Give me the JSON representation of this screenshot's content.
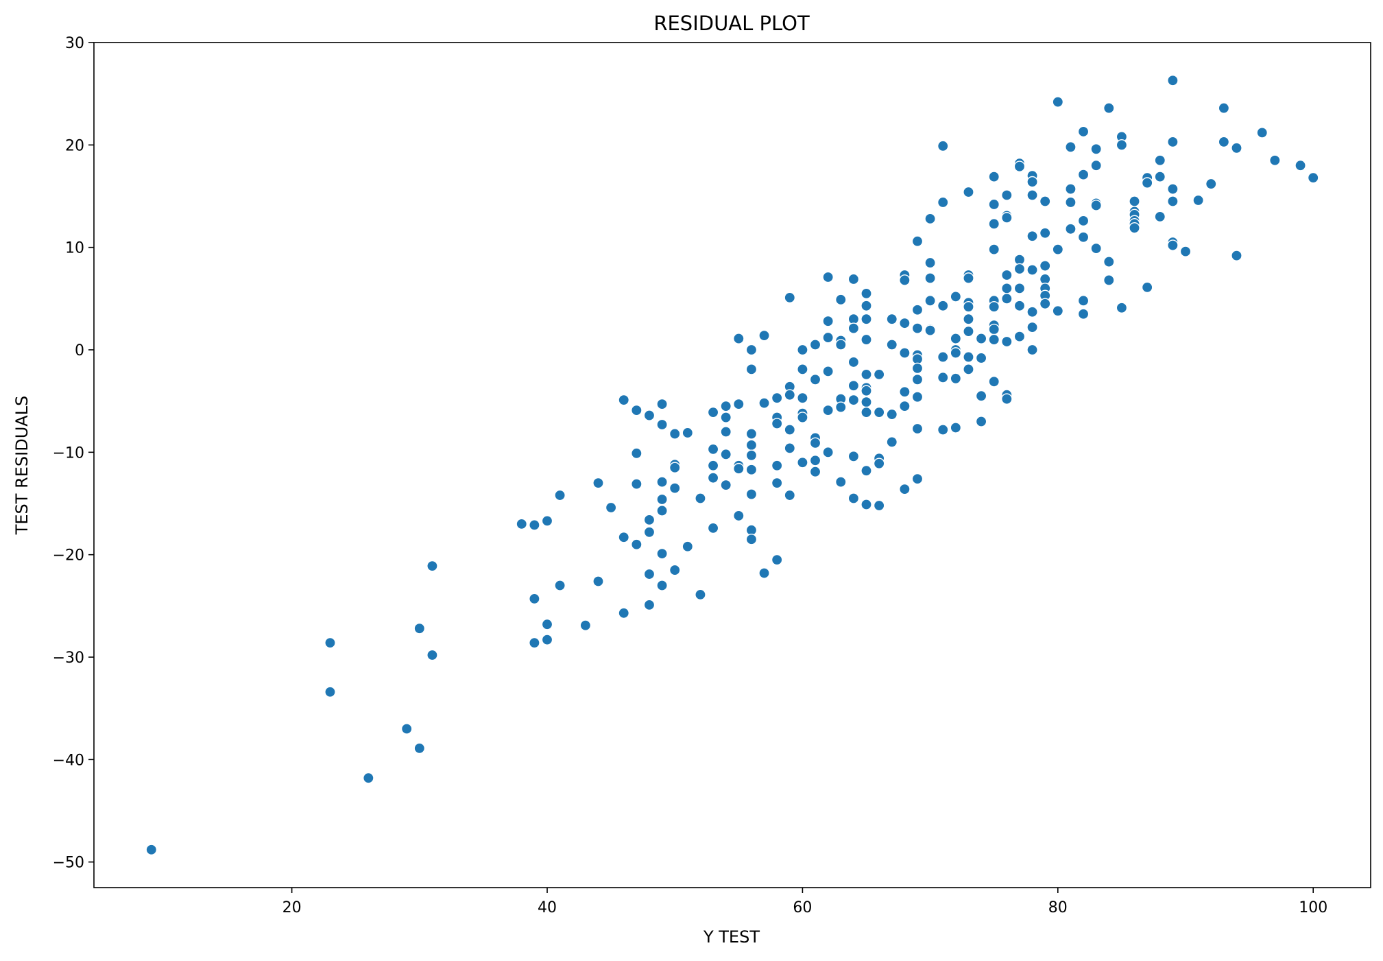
{
  "chart_data": {
    "type": "scatter",
    "title": "RESIDUAL PLOT",
    "xlabel": "Y TEST",
    "ylabel": "TEST RESIDUALS",
    "xlim": [
      4.5,
      104.5
    ],
    "ylim": [
      -52.5,
      30
    ],
    "xticks": [
      "20",
      "40",
      "60",
      "80",
      "100"
    ],
    "yticks": [
      "30",
      "20",
      "10",
      "0",
      "−10",
      "−20",
      "−30",
      "−40",
      "−50"
    ],
    "grid": false,
    "marker_color": "#1f77b4",
    "marker_edge": "#ffffff",
    "points": [
      [
        9,
        -48.8
      ],
      [
        23,
        -28.6
      ],
      [
        23,
        -33.4
      ],
      [
        26,
        -41.8
      ],
      [
        29,
        -37
      ],
      [
        30,
        -27.2
      ],
      [
        30,
        -38.9
      ],
      [
        31,
        -21.1
      ],
      [
        31,
        -29.8
      ],
      [
        38,
        -17
      ],
      [
        39,
        -17.1
      ],
      [
        39,
        -24.3
      ],
      [
        39,
        -28.6
      ],
      [
        40,
        -16.7
      ],
      [
        40,
        -26.8
      ],
      [
        40,
        -28.3
      ],
      [
        41,
        -14.2
      ],
      [
        41,
        -23
      ],
      [
        43,
        -26.9
      ],
      [
        44,
        -13
      ],
      [
        44,
        -22.6
      ],
      [
        45,
        -15.4
      ],
      [
        46,
        -4.9
      ],
      [
        46,
        -18.3
      ],
      [
        46,
        -25.7
      ],
      [
        47,
        -5.9
      ],
      [
        47,
        -10.1
      ],
      [
        47,
        -13.1
      ],
      [
        47,
        -19
      ],
      [
        48,
        -6.4
      ],
      [
        48,
        -16.6
      ],
      [
        48,
        -17.8
      ],
      [
        48,
        -21.9
      ],
      [
        48,
        -24.9
      ],
      [
        49,
        -5.3
      ],
      [
        49,
        -7.3
      ],
      [
        49,
        -12.9
      ],
      [
        49,
        -14.6
      ],
      [
        49,
        -15.7
      ],
      [
        49,
        -19.9
      ],
      [
        49,
        -23
      ],
      [
        50,
        -8.2
      ],
      [
        50,
        -11.2
      ],
      [
        50,
        -11.5
      ],
      [
        50,
        -13.5
      ],
      [
        50,
        -21.5
      ],
      [
        51,
        -8.1
      ],
      [
        51,
        -19.2
      ],
      [
        52,
        -14.5
      ],
      [
        52,
        -23.9
      ],
      [
        53,
        -6.1
      ],
      [
        53,
        -9.7
      ],
      [
        53,
        -11.3
      ],
      [
        53,
        -12.5
      ],
      [
        53,
        -17.4
      ],
      [
        54,
        -5.5
      ],
      [
        54,
        -6.6
      ],
      [
        54,
        -8
      ],
      [
        54,
        -10.2
      ],
      [
        54,
        -13.2
      ],
      [
        55,
        1.1
      ],
      [
        55,
        -5.3
      ],
      [
        55,
        -11.3
      ],
      [
        55,
        -11.6
      ],
      [
        55,
        -16.2
      ],
      [
        56,
        0
      ],
      [
        56,
        -1.9
      ],
      [
        56,
        -8.2
      ],
      [
        56,
        -9.3
      ],
      [
        56,
        -10.3
      ],
      [
        56,
        -11.7
      ],
      [
        56,
        -14.1
      ],
      [
        56,
        -17.6
      ],
      [
        56,
        -18.5
      ],
      [
        57,
        1.4
      ],
      [
        57,
        -5.2
      ],
      [
        57,
        -21.8
      ],
      [
        58,
        -4.7
      ],
      [
        58,
        -6.6
      ],
      [
        58,
        -7.2
      ],
      [
        58,
        -11.3
      ],
      [
        58,
        -13
      ],
      [
        58,
        -20.5
      ],
      [
        59,
        5.1
      ],
      [
        59,
        -3.6
      ],
      [
        59,
        -4.4
      ],
      [
        59,
        -7.8
      ],
      [
        59,
        -9.6
      ],
      [
        59,
        -14.2
      ],
      [
        60,
        0
      ],
      [
        60,
        -1.9
      ],
      [
        60,
        -4.7
      ],
      [
        60,
        -6.2
      ],
      [
        60,
        -6.6
      ],
      [
        60,
        -11
      ],
      [
        61,
        0.5
      ],
      [
        61,
        -2.9
      ],
      [
        61,
        -8.6
      ],
      [
        61,
        -9.1
      ],
      [
        61,
        -10.8
      ],
      [
        61,
        -11.9
      ],
      [
        62,
        7.1
      ],
      [
        62,
        2.8
      ],
      [
        62,
        1.2
      ],
      [
        62,
        -2.1
      ],
      [
        62,
        -5.9
      ],
      [
        62,
        -10
      ],
      [
        63,
        4.9
      ],
      [
        63,
        0.9
      ],
      [
        63,
        0.5
      ],
      [
        63,
        -4.8
      ],
      [
        63,
        -5.6
      ],
      [
        63,
        -12.9
      ],
      [
        64,
        6.9
      ],
      [
        64,
        3
      ],
      [
        64,
        2.1
      ],
      [
        64,
        -1.2
      ],
      [
        64,
        -3.5
      ],
      [
        64,
        -4.9
      ],
      [
        64,
        -10.4
      ],
      [
        64,
        -14.5
      ],
      [
        65,
        5.5
      ],
      [
        65,
        4.3
      ],
      [
        65,
        3
      ],
      [
        65,
        1
      ],
      [
        65,
        -2.4
      ],
      [
        65,
        -3.7
      ],
      [
        65,
        -4
      ],
      [
        65,
        -5.1
      ],
      [
        65,
        -6.1
      ],
      [
        65,
        -11.8
      ],
      [
        65,
        -15.1
      ],
      [
        66,
        -2.4
      ],
      [
        66,
        -6.1
      ],
      [
        66,
        -10.6
      ],
      [
        66,
        -11.1
      ],
      [
        66,
        -15.2
      ],
      [
        67,
        3
      ],
      [
        67,
        0.5
      ],
      [
        67,
        -6.3
      ],
      [
        67,
        -9
      ],
      [
        68,
        7.3
      ],
      [
        68,
        6.8
      ],
      [
        68,
        2.6
      ],
      [
        68,
        -0.3
      ],
      [
        68,
        -4.1
      ],
      [
        68,
        -5.5
      ],
      [
        68,
        -13.6
      ],
      [
        69,
        10.6
      ],
      [
        69,
        3.9
      ],
      [
        69,
        2.1
      ],
      [
        69,
        -0.5
      ],
      [
        69,
        -0.9
      ],
      [
        69,
        -1.8
      ],
      [
        69,
        -2.9
      ],
      [
        69,
        -4.6
      ],
      [
        69,
        -7.7
      ],
      [
        69,
        -12.6
      ],
      [
        70,
        12.8
      ],
      [
        70,
        8.5
      ],
      [
        70,
        7
      ],
      [
        70,
        4.8
      ],
      [
        70,
        2
      ],
      [
        70,
        1.9
      ],
      [
        71,
        19.9
      ],
      [
        71,
        14.4
      ],
      [
        71,
        4.3
      ],
      [
        71,
        -0.7
      ],
      [
        71,
        -2.7
      ],
      [
        71,
        -7.8
      ],
      [
        72,
        5.2
      ],
      [
        72,
        1.1
      ],
      [
        72,
        0
      ],
      [
        72,
        -0.3
      ],
      [
        72,
        -2.8
      ],
      [
        72,
        -7.6
      ],
      [
        73,
        15.4
      ],
      [
        73,
        7.3
      ],
      [
        73,
        7
      ],
      [
        73,
        4.6
      ],
      [
        73,
        4.2
      ],
      [
        73,
        3
      ],
      [
        73,
        1.8
      ],
      [
        73,
        -0.7
      ],
      [
        73,
        -1.9
      ],
      [
        74,
        1.1
      ],
      [
        74,
        -0.8
      ],
      [
        74,
        -4.5
      ],
      [
        74,
        -7
      ],
      [
        75,
        16.9
      ],
      [
        75,
        14.2
      ],
      [
        75,
        12.3
      ],
      [
        75,
        9.8
      ],
      [
        75,
        4.8
      ],
      [
        75,
        4.2
      ],
      [
        75,
        2.4
      ],
      [
        75,
        2
      ],
      [
        75,
        1
      ],
      [
        75,
        -3.1
      ],
      [
        76,
        15.1
      ],
      [
        76,
        13.1
      ],
      [
        76,
        12.9
      ],
      [
        76,
        7.3
      ],
      [
        76,
        6
      ],
      [
        76,
        5
      ],
      [
        76,
        0.8
      ],
      [
        76,
        -4.4
      ],
      [
        76,
        -4.8
      ],
      [
        77,
        18.2
      ],
      [
        77,
        17.9
      ],
      [
        77,
        8.8
      ],
      [
        77,
        7.9
      ],
      [
        77,
        6
      ],
      [
        77,
        4.3
      ],
      [
        77,
        1.3
      ],
      [
        78,
        17
      ],
      [
        78,
        16.4
      ],
      [
        78,
        15.1
      ],
      [
        78,
        11.1
      ],
      [
        78,
        7.8
      ],
      [
        78,
        3.7
      ],
      [
        78,
        2.2
      ],
      [
        78,
        0
      ],
      [
        79,
        14.5
      ],
      [
        79,
        11.4
      ],
      [
        79,
        8.2
      ],
      [
        79,
        6.9
      ],
      [
        79,
        6
      ],
      [
        79,
        5.3
      ],
      [
        79,
        4.5
      ],
      [
        80,
        24.2
      ],
      [
        80,
        9.8
      ],
      [
        80,
        3.8
      ],
      [
        81,
        19.8
      ],
      [
        81,
        15.7
      ],
      [
        81,
        14.4
      ],
      [
        81,
        11.8
      ],
      [
        82,
        21.3
      ],
      [
        82,
        17.1
      ],
      [
        82,
        12.6
      ],
      [
        82,
        11
      ],
      [
        82,
        4.8
      ],
      [
        82,
        3.5
      ],
      [
        83,
        19.6
      ],
      [
        83,
        18
      ],
      [
        83,
        14.3
      ],
      [
        83,
        14.1
      ],
      [
        83,
        9.9
      ],
      [
        84,
        23.6
      ],
      [
        84,
        8.6
      ],
      [
        84,
        6.8
      ],
      [
        85,
        20.8
      ],
      [
        85,
        20
      ],
      [
        85,
        4.1
      ],
      [
        86,
        14.5
      ],
      [
        86,
        13.5
      ],
      [
        86,
        13.2
      ],
      [
        86,
        12.6
      ],
      [
        86,
        12.3
      ],
      [
        86,
        11.9
      ],
      [
        87,
        16.8
      ],
      [
        87,
        16.3
      ],
      [
        87,
        6.1
      ],
      [
        88,
        18.5
      ],
      [
        88,
        16.9
      ],
      [
        88,
        13
      ],
      [
        89,
        26.3
      ],
      [
        89,
        20.3
      ],
      [
        89,
        15.7
      ],
      [
        89,
        14.5
      ],
      [
        89,
        10.5
      ],
      [
        89,
        10.2
      ],
      [
        90,
        9.6
      ],
      [
        91,
        14.6
      ],
      [
        92,
        16.2
      ],
      [
        93,
        23.6
      ],
      [
        93,
        20.3
      ],
      [
        94,
        19.7
      ],
      [
        94,
        9.2
      ],
      [
        96,
        21.2
      ],
      [
        97,
        18.5
      ],
      [
        99,
        18
      ],
      [
        100,
        16.8
      ]
    ]
  }
}
